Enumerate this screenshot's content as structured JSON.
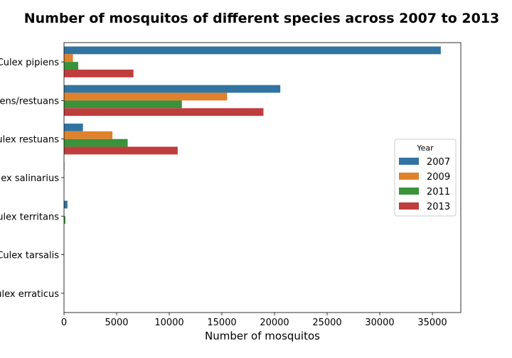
{
  "chart_data": {
    "type": "bar",
    "orientation": "horizontal",
    "title": "Number of mosquitos of different species across 2007 to 2013",
    "xlabel": "Number of mosquitos",
    "ylabel": "",
    "categories": [
      "Culex pipiens",
      "Culex pipiens/restuans",
      "Culex restuans",
      "Culex salinarius",
      "Culex territans",
      "Culex tarsalis",
      "Culex erraticus"
    ],
    "category_labels_visible": [
      "ulex pipiens",
      "ns/restuans",
      "ex restuans",
      "ex salinarius",
      "lex territans",
      "ulex tarsalis",
      "ex erraticus"
    ],
    "series": [
      {
        "name": "2007",
        "color": "#3274a1",
        "values": [
          35800,
          20550,
          1800,
          40,
          330,
          0,
          0
        ]
      },
      {
        "name": "2009",
        "color": "#e1812c",
        "values": [
          850,
          15500,
          4600,
          20,
          0,
          0,
          0
        ]
      },
      {
        "name": "2011",
        "color": "#3a923a",
        "values": [
          1350,
          11200,
          6050,
          20,
          130,
          0,
          0
        ]
      },
      {
        "name": "2013",
        "color": "#c03d3e",
        "values": [
          6600,
          18950,
          10800,
          10,
          0,
          0,
          0
        ]
      }
    ],
    "xlim": [
      0,
      37700
    ],
    "xticks": [
      0,
      5000,
      10000,
      15000,
      20000,
      25000,
      30000,
      35000
    ],
    "xtick_labels": [
      "0",
      "5000",
      "10000",
      "15000",
      "20000",
      "25000",
      "30000",
      "35000"
    ],
    "legend": {
      "title": "Year",
      "position": "center-right"
    },
    "grid": false
  }
}
